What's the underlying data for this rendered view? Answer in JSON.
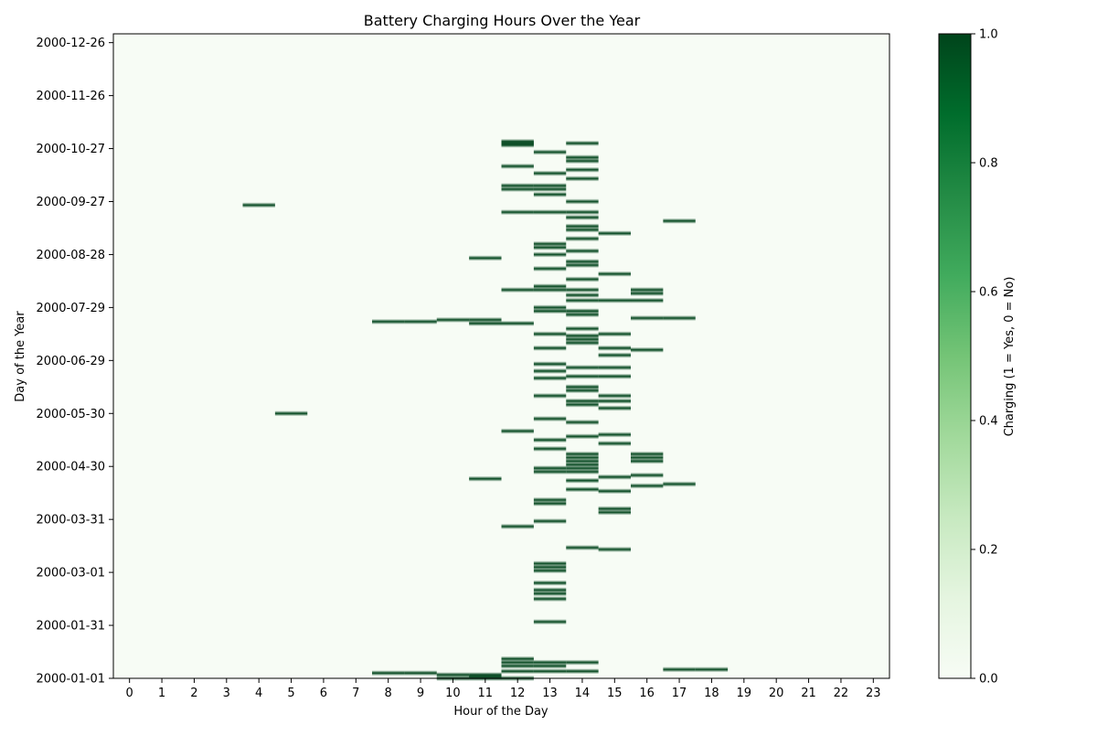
{
  "chart_data": {
    "type": "heatmap",
    "title": "Battery Charging Hours Over the Year",
    "xlabel": "Hour of the Day",
    "ylabel": "Day of the Year",
    "x_ticks": [
      "0",
      "1",
      "2",
      "3",
      "4",
      "5",
      "6",
      "7",
      "8",
      "9",
      "10",
      "11",
      "12",
      "13",
      "14",
      "15",
      "16",
      "17",
      "18",
      "19",
      "20",
      "21",
      "22",
      "23"
    ],
    "y_ticks": [
      "2000-01-01",
      "2000-01-31",
      "2000-03-01",
      "2000-03-31",
      "2000-04-30",
      "2000-05-30",
      "2000-06-29",
      "2000-07-29",
      "2000-08-28",
      "2000-09-27",
      "2000-10-27",
      "2000-11-26",
      "2000-12-26"
    ],
    "day_range": [
      "2000-01-01",
      "2000-12-31"
    ],
    "hour_range": [
      0,
      23
    ],
    "colormap": "Greens",
    "colors": {
      "low": "#f7fcf5",
      "high": "#00441b"
    },
    "colorbar": {
      "label": "Charging (1 = Yes, 0 = No)",
      "ticks": [
        "0.0",
        "0.2",
        "0.4",
        "0.6",
        "0.8",
        "1.0"
      ],
      "range": [
        0,
        1
      ]
    },
    "charging_events": [
      {
        "date": "2000-01-01",
        "hours": [
          10,
          11,
          12
        ]
      },
      {
        "date": "2000-01-02",
        "hours": [
          11
        ]
      },
      {
        "date": "2000-01-03",
        "hours": [
          10,
          11
        ]
      },
      {
        "date": "2000-01-04",
        "hours": [
          8,
          9
        ]
      },
      {
        "date": "2000-01-05",
        "hours": [
          12,
          13,
          14
        ]
      },
      {
        "date": "2000-01-06",
        "hours": [
          17,
          18
        ]
      },
      {
        "date": "2000-01-08",
        "hours": [
          12,
          13
        ]
      },
      {
        "date": "2000-01-10",
        "hours": [
          12,
          13,
          14
        ]
      },
      {
        "date": "2000-01-12",
        "hours": [
          12
        ]
      },
      {
        "date": "2000-02-02",
        "hours": [
          13
        ]
      },
      {
        "date": "2000-02-15",
        "hours": [
          13
        ]
      },
      {
        "date": "2000-02-18",
        "hours": [
          13
        ]
      },
      {
        "date": "2000-02-20",
        "hours": [
          13
        ]
      },
      {
        "date": "2000-02-24",
        "hours": [
          13
        ]
      },
      {
        "date": "2000-03-02",
        "hours": [
          13
        ]
      },
      {
        "date": "2000-03-04",
        "hours": [
          13
        ]
      },
      {
        "date": "2000-03-06",
        "hours": [
          13
        ]
      },
      {
        "date": "2000-03-14",
        "hours": [
          15
        ]
      },
      {
        "date": "2000-03-15",
        "hours": [
          14
        ]
      },
      {
        "date": "2000-03-27",
        "hours": [
          12
        ]
      },
      {
        "date": "2000-03-30",
        "hours": [
          13
        ]
      },
      {
        "date": "2000-04-04",
        "hours": [
          15
        ]
      },
      {
        "date": "2000-04-06",
        "hours": [
          15
        ]
      },
      {
        "date": "2000-04-09",
        "hours": [
          13
        ]
      },
      {
        "date": "2000-04-11",
        "hours": [
          13
        ]
      },
      {
        "date": "2000-04-16",
        "hours": [
          15
        ]
      },
      {
        "date": "2000-04-17",
        "hours": [
          14
        ]
      },
      {
        "date": "2000-04-19",
        "hours": [
          16
        ]
      },
      {
        "date": "2000-04-20",
        "hours": [
          17
        ]
      },
      {
        "date": "2000-04-22",
        "hours": [
          14
        ]
      },
      {
        "date": "2000-04-23",
        "hours": [
          11
        ]
      },
      {
        "date": "2000-04-24",
        "hours": [
          15
        ]
      },
      {
        "date": "2000-04-25",
        "hours": [
          16
        ]
      },
      {
        "date": "2000-04-27",
        "hours": [
          13,
          14
        ]
      },
      {
        "date": "2000-04-29",
        "hours": [
          13,
          14
        ]
      },
      {
        "date": "2000-05-01",
        "hours": [
          14
        ]
      },
      {
        "date": "2000-05-03",
        "hours": [
          14,
          16
        ]
      },
      {
        "date": "2000-05-05",
        "hours": [
          14,
          16
        ]
      },
      {
        "date": "2000-05-07",
        "hours": [
          14,
          16
        ]
      },
      {
        "date": "2000-05-10",
        "hours": [
          13
        ]
      },
      {
        "date": "2000-05-13",
        "hours": [
          15
        ]
      },
      {
        "date": "2000-05-15",
        "hours": [
          13
        ]
      },
      {
        "date": "2000-05-17",
        "hours": [
          14
        ]
      },
      {
        "date": "2000-05-18",
        "hours": [
          15
        ]
      },
      {
        "date": "2000-05-20",
        "hours": [
          12
        ]
      },
      {
        "date": "2000-05-25",
        "hours": [
          14
        ]
      },
      {
        "date": "2000-05-27",
        "hours": [
          13
        ]
      },
      {
        "date": "2000-05-30",
        "hours": [
          5
        ]
      },
      {
        "date": "2000-06-02",
        "hours": [
          15
        ]
      },
      {
        "date": "2000-06-04",
        "hours": [
          14
        ]
      },
      {
        "date": "2000-06-06",
        "hours": [
          14,
          15
        ]
      },
      {
        "date": "2000-06-09",
        "hours": [
          13,
          15
        ]
      },
      {
        "date": "2000-06-12",
        "hours": [
          14
        ]
      },
      {
        "date": "2000-06-14",
        "hours": [
          14
        ]
      },
      {
        "date": "2000-06-19",
        "hours": [
          13
        ]
      },
      {
        "date": "2000-06-20",
        "hours": [
          14,
          15
        ]
      },
      {
        "date": "2000-06-23",
        "hours": [
          13
        ]
      },
      {
        "date": "2000-06-25",
        "hours": [
          14,
          15
        ]
      },
      {
        "date": "2000-06-27",
        "hours": [
          13
        ]
      },
      {
        "date": "2000-07-02",
        "hours": [
          15
        ]
      },
      {
        "date": "2000-07-05",
        "hours": [
          16
        ]
      },
      {
        "date": "2000-07-06",
        "hours": [
          13,
          15
        ]
      },
      {
        "date": "2000-07-09",
        "hours": [
          14
        ]
      },
      {
        "date": "2000-07-11",
        "hours": [
          14
        ]
      },
      {
        "date": "2000-07-13",
        "hours": [
          14
        ]
      },
      {
        "date": "2000-07-14",
        "hours": [
          13,
          15
        ]
      },
      {
        "date": "2000-07-17",
        "hours": [
          14
        ]
      },
      {
        "date": "2000-07-20",
        "hours": [
          11,
          12
        ]
      },
      {
        "date": "2000-07-21",
        "hours": [
          8,
          9
        ]
      },
      {
        "date": "2000-07-22",
        "hours": [
          10,
          11
        ]
      },
      {
        "date": "2000-07-23",
        "hours": [
          16,
          17
        ]
      },
      {
        "date": "2000-07-25",
        "hours": [
          14
        ]
      },
      {
        "date": "2000-07-27",
        "hours": [
          13,
          14
        ]
      },
      {
        "date": "2000-07-29",
        "hours": [
          13
        ]
      },
      {
        "date": "2000-08-02",
        "hours": [
          14,
          15,
          16
        ]
      },
      {
        "date": "2000-08-05",
        "hours": [
          14
        ]
      },
      {
        "date": "2000-08-06",
        "hours": [
          16
        ]
      },
      {
        "date": "2000-08-08",
        "hours": [
          12,
          13,
          14,
          16
        ]
      },
      {
        "date": "2000-08-10",
        "hours": [
          13
        ]
      },
      {
        "date": "2000-08-14",
        "hours": [
          14
        ]
      },
      {
        "date": "2000-08-17",
        "hours": [
          15
        ]
      },
      {
        "date": "2000-08-20",
        "hours": [
          13
        ]
      },
      {
        "date": "2000-08-22",
        "hours": [
          14
        ]
      },
      {
        "date": "2000-08-24",
        "hours": [
          14
        ]
      },
      {
        "date": "2000-08-26",
        "hours": [
          11
        ]
      },
      {
        "date": "2000-08-28",
        "hours": [
          13
        ]
      },
      {
        "date": "2000-08-30",
        "hours": [
          14
        ]
      },
      {
        "date": "2000-09-01",
        "hours": [
          13
        ]
      },
      {
        "date": "2000-09-03",
        "hours": [
          13
        ]
      },
      {
        "date": "2000-09-06",
        "hours": [
          14
        ]
      },
      {
        "date": "2000-09-09",
        "hours": [
          15
        ]
      },
      {
        "date": "2000-09-11",
        "hours": [
          14
        ]
      },
      {
        "date": "2000-09-13",
        "hours": [
          14
        ]
      },
      {
        "date": "2000-09-16",
        "hours": [
          17
        ]
      },
      {
        "date": "2000-09-18",
        "hours": [
          14
        ]
      },
      {
        "date": "2000-09-21",
        "hours": [
          12,
          13,
          14
        ]
      },
      {
        "date": "2000-09-25",
        "hours": [
          4
        ]
      },
      {
        "date": "2000-09-27",
        "hours": [
          14
        ]
      },
      {
        "date": "2000-10-01",
        "hours": [
          13
        ]
      },
      {
        "date": "2000-10-04",
        "hours": [
          12,
          13
        ]
      },
      {
        "date": "2000-10-06",
        "hours": [
          12,
          13
        ]
      },
      {
        "date": "2000-10-10",
        "hours": [
          14
        ]
      },
      {
        "date": "2000-10-13",
        "hours": [
          13
        ]
      },
      {
        "date": "2000-10-15",
        "hours": [
          14
        ]
      },
      {
        "date": "2000-10-17",
        "hours": [
          12
        ]
      },
      {
        "date": "2000-10-20",
        "hours": [
          14
        ]
      },
      {
        "date": "2000-10-22",
        "hours": [
          14
        ]
      },
      {
        "date": "2000-10-25",
        "hours": [
          13
        ]
      },
      {
        "date": "2000-10-29",
        "hours": [
          12
        ]
      },
      {
        "date": "2000-10-30",
        "hours": [
          12,
          14
        ]
      },
      {
        "date": "2000-10-31",
        "hours": [
          12
        ]
      }
    ]
  }
}
